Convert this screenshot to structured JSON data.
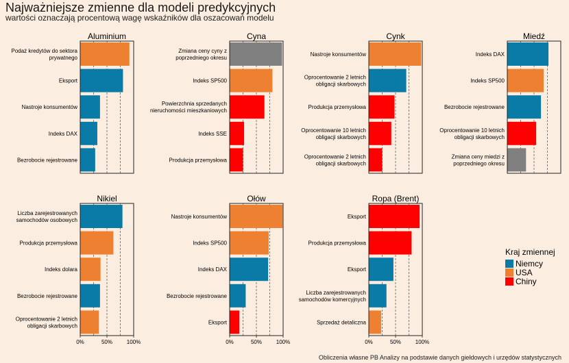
{
  "title": "Najważniejsze zmienne dla modeli predykcyjnych",
  "subtitle": "wartości oznaczają procentową wagę wskaźników dla oszacowań modelu",
  "footer": "Obliczenia własne PB Analizy na podstawie danych giełdowych i urzędów statystycznych",
  "colors": {
    "Niemcy": "#0a7aa6",
    "USA": "#ee8031",
    "Chiny": "#ff0000",
    "inne": "#808080",
    "background": "#fbeee1"
  },
  "chart_data": {
    "type": "bar",
    "orientation": "horizontal",
    "xlim": [
      0,
      100
    ],
    "x_ticks": [
      "0%",
      "50%",
      "100%"
    ],
    "legend": {
      "title": "Kraj zmiennej",
      "placement": "right",
      "entries": [
        {
          "name": "Niemcy",
          "color": "#0a7aa6"
        },
        {
          "name": "USA",
          "color": "#ee8031"
        },
        {
          "name": "Chiny",
          "color": "#ff0000"
        }
      ]
    },
    "panels": [
      {
        "title": "Aluminium",
        "bars": [
          {
            "label": [
              "Podaż kredytów do sektora",
              "prywatnego"
            ],
            "value": 92,
            "group": "USA"
          },
          {
            "label": [
              "Eksport"
            ],
            "value": 80,
            "group": "Niemcy"
          },
          {
            "label": [
              "Nastroje konsumentów"
            ],
            "value": 37,
            "group": "Niemcy"
          },
          {
            "label": [
              "Indeks DAX"
            ],
            "value": 32,
            "group": "Niemcy"
          },
          {
            "label": [
              "Bezrobocie rejestrowane"
            ],
            "value": 28,
            "group": "Niemcy"
          }
        ]
      },
      {
        "title": "Cyna",
        "bars": [
          {
            "label": [
              "Zmiana ceny cyny z",
              "poprzedniego okresu"
            ],
            "value": 98,
            "group": "inne"
          },
          {
            "label": [
              "Indeks SP500"
            ],
            "value": 80,
            "group": "USA"
          },
          {
            "label": [
              "Powierzchnia sprzedanych",
              "nieruchomości mieszkaniowych"
            ],
            "value": 65,
            "group": "Chiny"
          },
          {
            "label": [
              "Indeks SSE"
            ],
            "value": 27,
            "group": "Chiny"
          },
          {
            "label": [
              "Produkcja przemysłowa"
            ],
            "value": 25,
            "group": "Chiny"
          }
        ]
      },
      {
        "title": "Cynk",
        "bars": [
          {
            "label": [
              "Nastroje konsumentów"
            ],
            "value": 98,
            "group": "USA"
          },
          {
            "label": [
              "Oprocentowanie 2 letnich",
              "obligacji skarbowych"
            ],
            "value": 70,
            "group": "Niemcy"
          },
          {
            "label": [
              "Produkcja przemysłowa"
            ],
            "value": 48,
            "group": "Chiny"
          },
          {
            "label": [
              "Oprocentowanie 10 letnich",
              "obligacji skarbowych"
            ],
            "value": 42,
            "group": "Chiny"
          },
          {
            "label": [
              "Oprocentowanie 2 letnich",
              "obligacji skarbowych"
            ],
            "value": 25,
            "group": "Chiny"
          }
        ]
      },
      {
        "title": "Miedź",
        "bars": [
          {
            "label": [
              "Indeks DAX"
            ],
            "value": 77,
            "group": "Niemcy"
          },
          {
            "label": [
              "Indeks SP500"
            ],
            "value": 68,
            "group": "USA"
          },
          {
            "label": [
              "Bezrobocie rejestrowane"
            ],
            "value": 63,
            "group": "Niemcy"
          },
          {
            "label": [
              "Oprocentowanie 10 letnich",
              "obligacji skarbowych"
            ],
            "value": 54,
            "group": "Chiny"
          },
          {
            "label": [
              "Zmiana ceny miedzi z",
              "poprzedniego okresu"
            ],
            "value": 35,
            "group": "inne"
          }
        ]
      },
      {
        "title": "Nikiel",
        "bars": [
          {
            "label": [
              "Liczba zarejestrowanych",
              "samochodów osobowych"
            ],
            "value": 79,
            "group": "Niemcy"
          },
          {
            "label": [
              "Produkcja przemysłowa"
            ],
            "value": 62,
            "group": "USA"
          },
          {
            "label": [
              "Indeks dolara"
            ],
            "value": 38,
            "group": "USA"
          },
          {
            "label": [
              "Bezrobocie rejestrowane"
            ],
            "value": 37,
            "group": "Niemcy"
          },
          {
            "label": [
              "Oprocentowanie 2 letnich",
              "obligacji skarbowych"
            ],
            "value": 35,
            "group": "USA"
          }
        ]
      },
      {
        "title": "Ołów",
        "bars": [
          {
            "label": [
              "Nastroje konsumentów"
            ],
            "value": 99,
            "group": "USA"
          },
          {
            "label": [
              "Indeks SP500"
            ],
            "value": 73,
            "group": "USA"
          },
          {
            "label": [
              "Indeks DAX"
            ],
            "value": 72,
            "group": "Niemcy"
          },
          {
            "label": [
              "Bezrobocie rejestrowane"
            ],
            "value": 30,
            "group": "Niemcy"
          },
          {
            "label": [
              "Eksport"
            ],
            "value": 18,
            "group": "Chiny"
          }
        ]
      },
      {
        "title": "Ropa (Brent)",
        "bars": [
          {
            "label": [
              "Eksport"
            ],
            "value": 95,
            "group": "Chiny"
          },
          {
            "label": [
              "Produkcja przemysłowa"
            ],
            "value": 80,
            "group": "Chiny"
          },
          {
            "label": [
              "Eksport"
            ],
            "value": 46,
            "group": "Niemcy"
          },
          {
            "label": [
              "Liczba zarejestrowanych",
              "samochodów komercyjnych"
            ],
            "value": 33,
            "group": "Niemcy"
          },
          {
            "label": [
              "Sprzedaż detaliczna"
            ],
            "value": 23,
            "group": "USA"
          }
        ]
      }
    ]
  }
}
